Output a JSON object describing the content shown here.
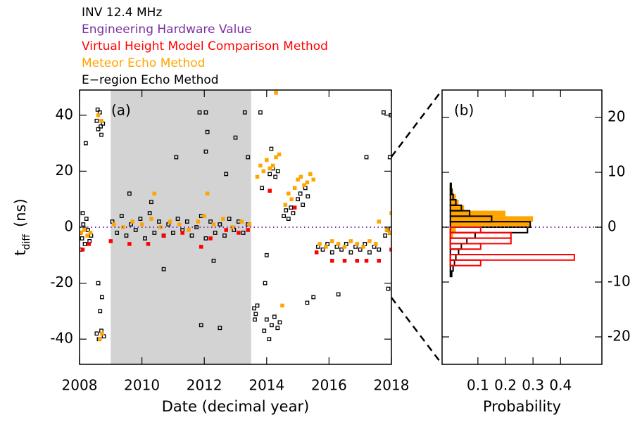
{
  "chart_data": [
    {
      "type": "scatter",
      "title": "INV 12.4 MHz",
      "panel_label": "(a)",
      "xlabel": "Date (decimal year)",
      "ylabel": [
        "t",
        "diff",
        "(ns)"
      ],
      "xlim": [
        2008,
        2018
      ],
      "ylim": [
        -49,
        49
      ],
      "xticks": [
        2008,
        2010,
        2012,
        2014,
        2016,
        2018
      ],
      "yticks": [
        -40,
        -20,
        0,
        20,
        40
      ],
      "shaded_span": [
        2009,
        2013.5
      ],
      "shade_color": "#d3d3d3",
      "reference": {
        "name": "Engineering Hardware Value",
        "color": "#7b2fa0",
        "value": 0
      },
      "series": [
        {
          "name": "Virtual Height Model Comparison Method",
          "color": "#ff0000",
          "marker": "filled-square",
          "x": [
            2008.1,
            2008.3,
            2009.0,
            2009.6,
            2010.2,
            2010.7,
            2011.3,
            2011.9,
            2012.2,
            2012.7,
            2013.1,
            2013.4,
            2014.1,
            2014.9,
            2015.6,
            2016.1,
            2016.5,
            2016.9,
            2017.2,
            2017.6,
            2018.0
          ],
          "values": [
            -8,
            -6,
            -5,
            -6,
            -6,
            -3,
            -2,
            -7,
            -4,
            -1,
            -2,
            -1,
            13,
            7,
            -9,
            -12,
            -12,
            -12,
            -12,
            -12,
            -8
          ]
        },
        {
          "name": "Meteor Echo Method",
          "color": "#ffa500",
          "marker": "filled-square",
          "x": [
            2008.05,
            2008.15,
            2008.25,
            2008.35,
            2008.6,
            2008.7,
            2008.65,
            2008.72,
            2009.1,
            2009.4,
            2009.7,
            2010.0,
            2010.3,
            2010.4,
            2010.6,
            2010.9,
            2011.2,
            2011.5,
            2011.8,
            2012.0,
            2012.1,
            2012.3,
            2012.6,
            2012.9,
            2013.2,
            2013.45,
            2013.7,
            2013.8,
            2013.9,
            2014.0,
            2014.1,
            2014.2,
            2014.3,
            2014.4,
            2014.3,
            2014.5,
            2014.6,
            2014.7,
            2014.8,
            2014.9,
            2015.0,
            2015.1,
            2015.2,
            2015.3,
            2015.4,
            2015.5,
            2015.7,
            2015.9,
            2016.1,
            2016.3,
            2016.5,
            2016.7,
            2016.9,
            2017.1,
            2017.3,
            2017.5,
            2017.6,
            2017.85,
            2017.95,
            2018.0
          ],
          "values": [
            -2,
            -1,
            -3,
            -2,
            40,
            38,
            -40,
            -38,
            1,
            0,
            2,
            1,
            3,
            12,
            0,
            2,
            1,
            -1,
            2,
            4,
            12,
            1,
            3,
            0,
            2,
            1,
            18,
            22,
            20,
            24,
            21,
            22,
            25,
            26,
            48,
            -28,
            8,
            12,
            10,
            14,
            17,
            18,
            15,
            16,
            19,
            17,
            -6,
            -7,
            -5,
            -6,
            -7,
            -5,
            -6,
            -7,
            -5,
            -6,
            2,
            -1,
            -2,
            5
          ]
        },
        {
          "name": "E−region Echo Method",
          "color": "#000000",
          "marker": "open-square",
          "x": [
            2008.03,
            2008.08,
            2008.12,
            2008.17,
            2008.22,
            2008.27,
            2008.32,
            2008.37,
            2008.1,
            2008.2,
            2008.05,
            2008.55,
            2008.6,
            2008.65,
            2008.7,
            2008.75,
            2008.58,
            2008.68,
            2008.55,
            2008.62,
            2008.7,
            2008.78,
            2008.66,
            2008.6,
            2008.72,
            2009.05,
            2009.2,
            2009.35,
            2009.5,
            2009.65,
            2009.8,
            2009.95,
            2010.1,
            2010.25,
            2010.4,
            2010.55,
            2010.7,
            2010.85,
            2011.0,
            2011.15,
            2011.3,
            2011.45,
            2011.6,
            2011.75,
            2011.9,
            2012.05,
            2012.2,
            2012.35,
            2012.5,
            2012.65,
            2012.8,
            2012.95,
            2013.1,
            2013.25,
            2013.4,
            2010.7,
            2011.1,
            2011.85,
            2011.9,
            2012.05,
            2012.05,
            2012.1,
            2012.3,
            2012.5,
            2012.7,
            2013.0,
            2013.3,
            2013.4,
            2009.6,
            2010.3,
            2013.6,
            2013.65,
            2013.7,
            2013.62,
            2013.8,
            2013.85,
            2013.92,
            2014.0,
            2014.08,
            2014.16,
            2014.25,
            2014.35,
            2014.42,
            2014.1,
            2014.2,
            2014.28,
            2014.36,
            2013.95,
            2014.0,
            2014.15,
            2014.55,
            2014.62,
            2014.7,
            2014.78,
            2014.85,
            2015.0,
            2015.08,
            2015.16,
            2015.24,
            2015.32,
            2015.3,
            2015.5,
            2015.65,
            2015.8,
            2015.95,
            2016.1,
            2016.25,
            2016.4,
            2016.55,
            2016.7,
            2016.85,
            2017.0,
            2017.15,
            2017.3,
            2017.45,
            2017.6,
            2016.3,
            2017.2,
            2017.8,
            2017.88,
            2017.95,
            2017.75,
            2017.9,
            2017.95,
            2017.98
          ],
          "values": [
            -2,
            -4,
            1,
            -6,
            3,
            -1,
            -5,
            -3,
            5,
            30,
            -8,
            38,
            35,
            41,
            33,
            37,
            42,
            36,
            -38,
            -40,
            -37,
            -39,
            -30,
            -20,
            -25,
            2,
            -2,
            4,
            -3,
            1,
            -1,
            3,
            -4,
            5,
            -2,
            2,
            -3,
            1,
            -2,
            3,
            -1,
            2,
            -3,
            0,
            4,
            -4,
            2,
            -2,
            1,
            -3,
            3,
            -1,
            2,
            -2,
            1,
            -15,
            25,
            41,
            -35,
            41,
            27,
            34,
            -12,
            -36,
            19,
            32,
            41,
            25,
            12,
            9,
            -29,
            -31,
            -28,
            -33,
            41,
            14,
            -37,
            -33,
            -40,
            -35,
            -32,
            -36,
            -34,
            19,
            21,
            18,
            20,
            -20,
            -10,
            28,
            4,
            6,
            3,
            7,
            5,
            10,
            12,
            8,
            14,
            11,
            -27,
            -25,
            -7,
            -8,
            -6,
            -9,
            -7,
            -8,
            -6,
            -9,
            -7,
            -8,
            -6,
            -9,
            -7,
            -8,
            -24,
            25,
            -3,
            -1,
            -2,
            41,
            -22,
            25,
            40
          ]
        }
      ]
    },
    {
      "type": "histogram",
      "panel_label": "(b)",
      "xlabel": "Probability",
      "xlim": [
        -0.03,
        0.55
      ],
      "ylim": [
        -25,
        25
      ],
      "xticks": [
        0.1,
        0.2,
        0.3,
        0.4
      ],
      "yticks": [
        -20,
        -10,
        0,
        10,
        20
      ],
      "reference": {
        "color": "#7b2fa0",
        "value": 0
      },
      "bins": [
        -10,
        -9,
        -8,
        -7,
        -6,
        -5,
        -4,
        -3,
        -2,
        -1,
        0,
        1,
        2,
        3,
        4,
        5,
        6,
        7,
        8
      ],
      "series": [
        {
          "color": "#ffa500",
          "style": "filled",
          "values": [
            0,
            0,
            0,
            0,
            0,
            0,
            0,
            0,
            0.01,
            0.02,
            0.29,
            0.3,
            0.2,
            0.05,
            0.03,
            0.02,
            0.01,
            0.005
          ]
        },
        {
          "color": "#000000",
          "style": "outline",
          "values": [
            0,
            0.005,
            0.01,
            0.015,
            0.02,
            0.03,
            0.04,
            0.06,
            0.09,
            0.28,
            0.29,
            0.15,
            0.07,
            0.04,
            0.02,
            0.01,
            0.005,
            0.003
          ]
        },
        {
          "color": "#ff0000",
          "style": "outline",
          "values": [
            0,
            0,
            0,
            0.11,
            0.45,
            0,
            0.11,
            0.22,
            0.22,
            0.11,
            0,
            0,
            0,
            0,
            0,
            0,
            0,
            0
          ]
        }
      ]
    }
  ]
}
